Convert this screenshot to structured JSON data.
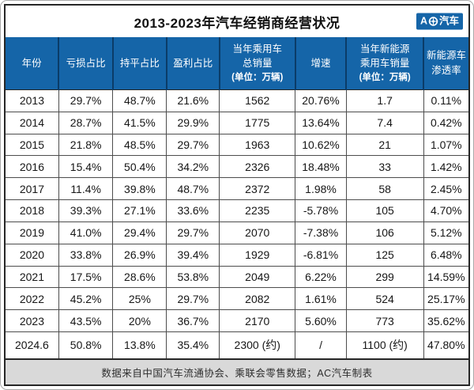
{
  "title": "2013-2023年汽车经销商经营状况",
  "logo": {
    "prefix": "A",
    "suffix": "汽车",
    "label": "AC汽车",
    "bg_color": "#1565a8"
  },
  "footnote": "数据来自中国汽车流通协会、乘联会零售数据；AC汽车制表",
  "colors": {
    "header_bg": "#1565a8",
    "header_divider": "#0b3c68",
    "grid_line": "#4d4d4d",
    "outer_border": "#262626",
    "footer_bg": "#d9d9d9",
    "header_text": "#ffffff",
    "body_text": "#161616"
  },
  "chart_data": {
    "type": "table",
    "title": "2013-2023年汽车经销商经营状况",
    "columns": [
      "年份",
      "亏损占比",
      "持平占比",
      "盈利占比",
      "当年乘用车总销量(单位：万辆)",
      "增速",
      "当年新能源乘用车销量(单位：万辆)",
      "新能源车渗透率"
    ],
    "header_lines": [
      [
        "年份"
      ],
      [
        "亏损占比"
      ],
      [
        "持平占比"
      ],
      [
        "盈利占比"
      ],
      [
        "当年乘用车",
        "总销量",
        "(单位：万辆)"
      ],
      [
        "增速"
      ],
      [
        "当年新能源",
        "乘用车销量",
        "(单位：万辆)"
      ],
      [
        "新能源车",
        "渗透率"
      ]
    ],
    "rows": [
      [
        "2013",
        "29.7%",
        "48.7%",
        "21.6%",
        "1562",
        "20.76%",
        "1.7",
        "0.11%"
      ],
      [
        "2014",
        "28.7%",
        "41.5%",
        "29.9%",
        "1775",
        "13.64%",
        "7.4",
        "0.42%"
      ],
      [
        "2015",
        "21.8%",
        "48.5%",
        "29.7%",
        "1963",
        "10.62%",
        "21",
        "1.07%"
      ],
      [
        "2016",
        "15.4%",
        "50.4%",
        "34.2%",
        "2326",
        "18.48%",
        "33",
        "1.42%"
      ],
      [
        "2017",
        "11.4%",
        "39.8%",
        "48.7%",
        "2372",
        "1.98%",
        "58",
        "2.45%"
      ],
      [
        "2018",
        "39.3%",
        "27.1%",
        "33.6%",
        "2235",
        "-5.78%",
        "105",
        "4.70%"
      ],
      [
        "2019",
        "41.0%",
        "29.4%",
        "29.7%",
        "2070",
        "-7.38%",
        "106",
        "5.12%"
      ],
      [
        "2020",
        "33.8%",
        "26.9%",
        "39.4%",
        "1929",
        "-6.81%",
        "125",
        "6.48%"
      ],
      [
        "2021",
        "17.5%",
        "28.6%",
        "53.8%",
        "2049",
        "6.22%",
        "299",
        "14.59%"
      ],
      [
        "2022",
        "45.2%",
        "25%",
        "29.7%",
        "2082",
        "1.61%",
        "524",
        "25.17%"
      ],
      [
        "2023",
        "43.5%",
        "20%",
        "36.7%",
        "2170",
        "5.60%",
        "773",
        "35.62%"
      ],
      [
        "2024.6",
        "50.8%",
        "13.8%",
        "35.4%",
        "2300 (约)",
        "/",
        "1100 (约)",
        "47.80%"
      ]
    ],
    "footnote": "数据来自中国汽车流通协会、乘联会零售数据；AC汽车制表",
    "layout": {
      "grid": "on",
      "legend": "none"
    }
  }
}
